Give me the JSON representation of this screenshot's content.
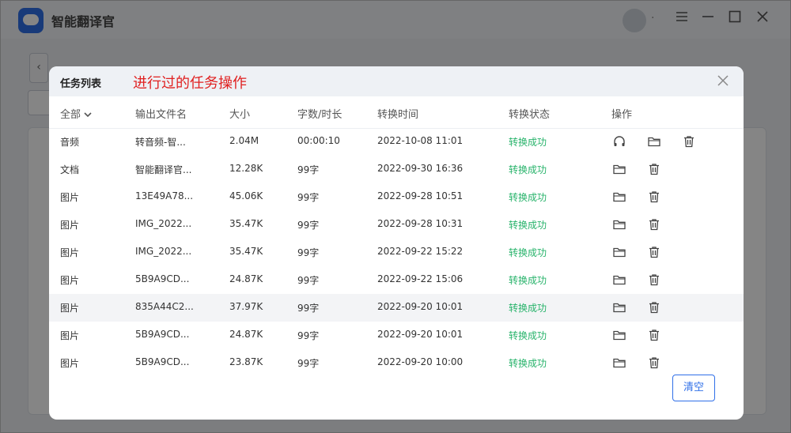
{
  "app": {
    "title": "智能翻译官"
  },
  "modal": {
    "title": "任务列表",
    "annotation": "进行过的任务操作",
    "filter_label": "全部",
    "columns": [
      "输出文件名",
      "大小",
      "字数/时长",
      "转换时间",
      "转换状态",
      "操作"
    ],
    "rows": [
      {
        "type": "音频",
        "name": "转音频-智...",
        "size": "2.04M",
        "length": "00:00:10",
        "time": "2022-10-08 11:01",
        "status": "转换成功",
        "audio": true
      },
      {
        "type": "文档",
        "name": "智能翻译官...",
        "size": "12.28K",
        "length": "99字",
        "time": "2022-09-30 16:36",
        "status": "转换成功"
      },
      {
        "type": "图片",
        "name": "13E49A78...",
        "size": "45.06K",
        "length": "99字",
        "time": "2022-09-28 10:51",
        "status": "转换成功"
      },
      {
        "type": "图片",
        "name": "IMG_2022...",
        "size": "35.47K",
        "length": "99字",
        "time": "2022-09-28 10:31",
        "status": "转换成功"
      },
      {
        "type": "图片",
        "name": "IMG_2022...",
        "size": "35.47K",
        "length": "99字",
        "time": "2022-09-22 15:22",
        "status": "转换成功"
      },
      {
        "type": "图片",
        "name": "5B9A9CD...",
        "size": "24.87K",
        "length": "99字",
        "time": "2022-09-22 15:06",
        "status": "转换成功"
      },
      {
        "type": "图片",
        "name": "835A44C2...",
        "size": "37.97K",
        "length": "99字",
        "time": "2022-09-20 10:01",
        "status": "转换成功",
        "highlight": true
      },
      {
        "type": "图片",
        "name": "5B9A9CD...",
        "size": "24.87K",
        "length": "99字",
        "time": "2022-09-20 10:01",
        "status": "转换成功"
      },
      {
        "type": "图片",
        "name": "5B9A9CD...",
        "size": "23.87K",
        "length": "99字",
        "time": "2022-09-20 10:00",
        "status": "转换成功"
      }
    ],
    "clear_label": "清空"
  },
  "colors": {
    "accent": "#2f6fe8",
    "success": "#28b36b",
    "annotation": "#e02020"
  }
}
